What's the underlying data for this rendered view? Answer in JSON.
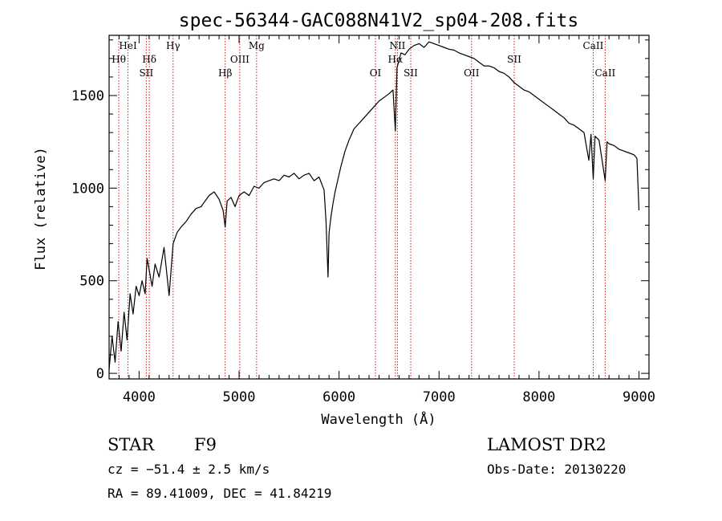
{
  "chart_data": {
    "type": "line",
    "title": "spec-56344-GAC088N41V2_sp04-208.fits",
    "xlabel": "Wavelength (Å)",
    "ylabel": "Flux (relative)",
    "xlim": [
      3700,
      9100
    ],
    "ylim": [
      -30,
      1825
    ],
    "x_ticks": [
      4000,
      5000,
      6000,
      7000,
      8000,
      9000
    ],
    "y_ticks": [
      0,
      500,
      1000,
      1500
    ],
    "grid": false,
    "series": [
      {
        "x": [
          3700,
          3730,
          3760,
          3790,
          3820,
          3850,
          3880,
          3910,
          3940,
          3970,
          4000,
          4030,
          4060,
          4080,
          4100,
          4130,
          4160,
          4200,
          4250,
          4300,
          4340,
          4380,
          4420,
          4470,
          4520,
          4570,
          4620,
          4660,
          4700,
          4750,
          4800,
          4840,
          4861,
          4880,
          4920,
          4960,
          5000,
          5050,
          5100,
          5150,
          5200,
          5250,
          5300,
          5350,
          5400,
          5450,
          5500,
          5550,
          5600,
          5650,
          5700,
          5750,
          5800,
          5850,
          5870,
          5890,
          5900,
          5920,
          5940,
          5960,
          5990,
          6020,
          6060,
          6100,
          6150,
          6200,
          6250,
          6300,
          6350,
          6400,
          6450,
          6500,
          6540,
          6563,
          6580,
          6620,
          6660,
          6700,
          6750,
          6800,
          6850,
          6900,
          6950,
          7000,
          7050,
          7100,
          7150,
          7200,
          7250,
          7300,
          7350,
          7400,
          7450,
          7500,
          7550,
          7600,
          7650,
          7700,
          7750,
          7800,
          7850,
          7900,
          7950,
          8000,
          8050,
          8100,
          8150,
          8200,
          8250,
          8300,
          8350,
          8400,
          8450,
          8498,
          8520,
          8542,
          8560,
          8600,
          8662,
          8680,
          8700,
          8750,
          8800,
          8850,
          8900,
          8950,
          8980,
          9000
        ],
        "y": [
          20,
          200,
          60,
          280,
          120,
          330,
          180,
          430,
          320,
          470,
          420,
          500,
          430,
          620,
          560,
          470,
          590,
          520,
          680,
          420,
          700,
          760,
          790,
          820,
          860,
          890,
          900,
          930,
          960,
          980,
          940,
          880,
          790,
          930,
          950,
          900,
          960,
          980,
          960,
          1010,
          1000,
          1030,
          1040,
          1050,
          1040,
          1070,
          1060,
          1080,
          1050,
          1070,
          1080,
          1040,
          1060,
          990,
          820,
          520,
          760,
          850,
          920,
          980,
          1050,
          1120,
          1200,
          1260,
          1320,
          1350,
          1380,
          1410,
          1440,
          1470,
          1490,
          1510,
          1530,
          1310,
          1650,
          1730,
          1720,
          1750,
          1770,
          1780,
          1760,
          1790,
          1780,
          1770,
          1760,
          1750,
          1745,
          1730,
          1720,
          1710,
          1700,
          1680,
          1660,
          1660,
          1650,
          1630,
          1620,
          1600,
          1570,
          1550,
          1530,
          1520,
          1500,
          1480,
          1460,
          1440,
          1420,
          1400,
          1380,
          1350,
          1340,
          1320,
          1300,
          1150,
          1290,
          1050,
          1280,
          1260,
          1040,
          1250,
          1240,
          1230,
          1210,
          1200,
          1190,
          1180,
          1160,
          880
        ]
      }
    ],
    "spectral_lines": [
      {
        "label": "Hθ",
        "x": 3797,
        "row": 2
      },
      {
        "label": "HeI",
        "x": 3889,
        "row": 1
      },
      {
        "label": "Hδ",
        "x": 4102,
        "row": 2
      },
      {
        "label": "SII",
        "x": 4072,
        "row": 3
      },
      {
        "label": "Hγ",
        "x": 4340,
        "row": 1
      },
      {
        "label": "Hβ",
        "x": 4861,
        "row": 3
      },
      {
        "label": "OIII",
        "x": 5007,
        "row": 2
      },
      {
        "label": "Mg",
        "x": 5175,
        "row": 1
      },
      {
        "label": "OI",
        "x": 6364,
        "row": 3
      },
      {
        "label": "NII",
        "x": 6584,
        "row": 1
      },
      {
        "label": "Hα",
        "x": 6563,
        "row": 2
      },
      {
        "label": "SII",
        "x": 6717,
        "row": 3
      },
      {
        "label": "OII",
        "x": 7325,
        "row": 3
      },
      {
        "label": "SII",
        "x": 7752,
        "row": 2
      },
      {
        "label": "CaII",
        "x": 8542,
        "row": 1
      },
      {
        "label": "CaII",
        "x": 8662,
        "row": 3
      }
    ],
    "line_color": "#000000",
    "marker_color": "#d01818"
  },
  "info": {
    "object_class": "STAR",
    "subclass": "F9",
    "redshift_text": "cz = −51.4 ± 2.5 km/s",
    "coords_text": "RA =  89.41009, DEC =  41.84219",
    "survey": "LAMOST DR2",
    "obs_date_text": "Obs-Date: 20130220"
  }
}
